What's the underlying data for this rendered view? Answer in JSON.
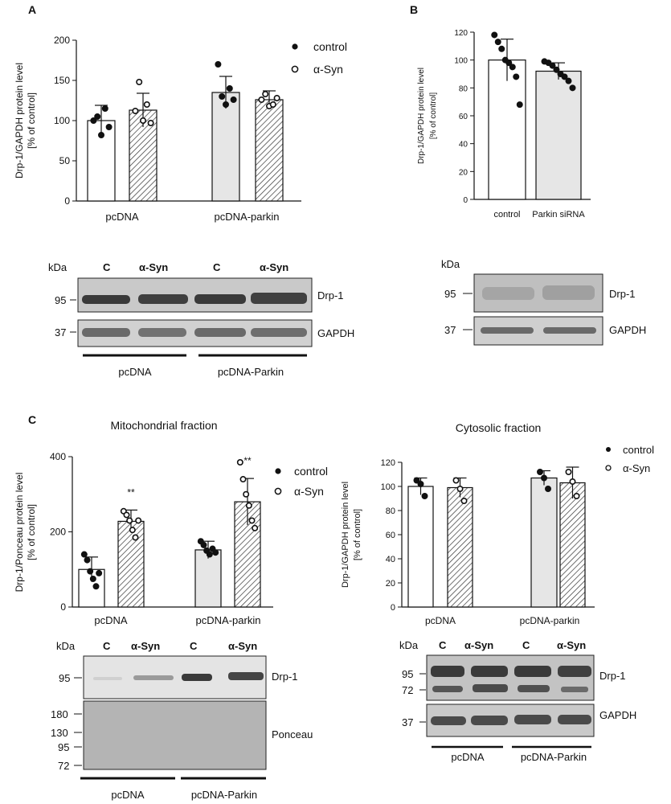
{
  "panel_labels": {
    "a": "A",
    "b": "B",
    "c": "C"
  },
  "legend": {
    "control": "control",
    "asyn": "α-Syn"
  },
  "chart_data": [
    {
      "id": "A",
      "type": "bar",
      "ylabel_line1": "Drp-1/GAPDH protein level",
      "ylabel_line2": "[% of control]",
      "ylim": [
        0,
        200
      ],
      "yticks": [
        0,
        50,
        100,
        150,
        200
      ],
      "groups": [
        "pcDNA",
        "pcDNA-parkin"
      ],
      "series": [
        {
          "name": "control",
          "values": [
            100,
            135
          ],
          "errors": [
            19,
            20
          ]
        },
        {
          "name": "α-Syn",
          "values": [
            113,
            126
          ],
          "errors": [
            21,
            11
          ]
        }
      ],
      "points": [
        [
          [
            100,
            105,
            82,
            115,
            92
          ],
          [
            112,
            148,
            100,
            120,
            97
          ]
        ],
        [
          [
            170,
            130,
            120,
            140,
            126
          ],
          [
            126,
            133,
            118,
            120,
            128
          ]
        ]
      ]
    },
    {
      "id": "B",
      "type": "bar",
      "ylabel_line1": "Drp-1/GAPDH protein level",
      "ylabel_line2": "[% of control]",
      "ylim": [
        0,
        120
      ],
      "yticks": [
        0,
        20,
        40,
        60,
        80,
        100,
        120
      ],
      "categories": [
        "control",
        "Parkin siRNA"
      ],
      "values": [
        100,
        92
      ],
      "errors": [
        15,
        6
      ],
      "points": [
        [
          118,
          113,
          108,
          100,
          98,
          95,
          88,
          68
        ],
        [
          99,
          98,
          96,
          93,
          90,
          88,
          85,
          80
        ]
      ]
    },
    {
      "id": "C-mito",
      "type": "bar",
      "title": "Mitochondrial fraction",
      "ylabel_line1": "Drp-1/Ponceau protein level",
      "ylabel_line2": "[% of control]",
      "ylim": [
        0,
        400
      ],
      "yticks": [
        0,
        200,
        400
      ],
      "groups": [
        "pcDNA",
        "pcDNA-parkin"
      ],
      "series": [
        {
          "name": "control",
          "values": [
            100,
            152
          ],
          "errors": [
            33,
            23
          ]
        },
        {
          "name": "α-Syn",
          "values": [
            228,
            280
          ],
          "errors": [
            30,
            62
          ]
        }
      ],
      "significance": [
        "**",
        "**"
      ],
      "points": [
        [
          [
            140,
            125,
            95,
            75,
            55,
            90
          ],
          [
            255,
            245,
            230,
            205,
            185,
            230
          ]
        ],
        [
          [
            175,
            165,
            150,
            140,
            155,
            145
          ],
          [
            385,
            340,
            300,
            270,
            230,
            210
          ]
        ]
      ]
    },
    {
      "id": "C-cyto",
      "type": "bar",
      "title": "Cytosolic fraction",
      "ylabel_line1": "Drp-1/GAPDH protein level",
      "ylabel_line2": "[% of control]",
      "ylim": [
        0,
        120
      ],
      "yticks": [
        0,
        20,
        40,
        60,
        80,
        100,
        120
      ],
      "groups": [
        "pcDNA",
        "pcDNA-parkin"
      ],
      "series": [
        {
          "name": "control",
          "values": [
            100,
            107
          ],
          "errors": [
            7,
            6
          ]
        },
        {
          "name": "α-Syn",
          "values": [
            99,
            103
          ],
          "errors": [
            8,
            13
          ]
        }
      ],
      "points": [
        [
          [
            105,
            102,
            92
          ],
          [
            105,
            98,
            88
          ]
        ],
        [
          [
            112,
            107,
            98
          ],
          [
            112,
            104,
            92
          ]
        ]
      ]
    }
  ],
  "blots": {
    "kda": "kDa",
    "lane_c": "C",
    "lane_asyn": "α-Syn",
    "pcdna": "pcDNA",
    "pcdna_parkin": "pcDNA-Parkin",
    "drp1": "Drp-1",
    "gapdh": "GAPDH",
    "ponceau": "Ponceau",
    "mw": {
      "m95": "95",
      "m37": "37",
      "m72": "72",
      "m180": "180",
      "m130": "130"
    }
  }
}
